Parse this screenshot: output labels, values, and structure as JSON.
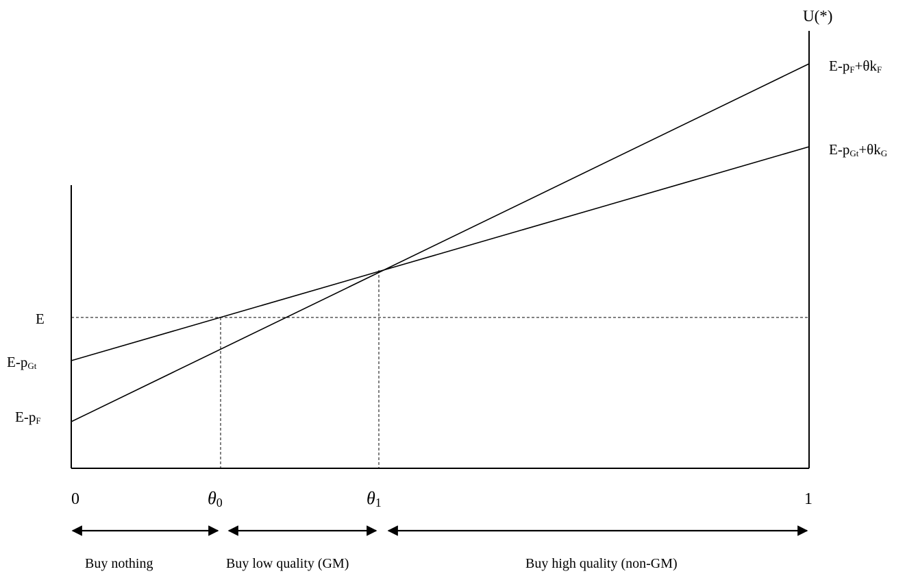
{
  "diagram": {
    "y_axis_label": "U(*)",
    "lines": [
      {
        "label_main": "E-p",
        "label_sub": "F",
        "label_mid": "+θk",
        "label_sub2": "F"
      },
      {
        "label_main": "E-p",
        "label_sub": "Gt",
        "label_mid": "+θk",
        "label_sub2": "G"
      }
    ],
    "y_labels": {
      "E": "E",
      "E_pGt_main": "E-p",
      "E_pGt_sub": "Gt",
      "E_pF_main": "E-p",
      "E_pF_sub": "F"
    },
    "x_labels": {
      "zero": "0",
      "theta": "θ",
      "theta0_sub": "0",
      "theta1_sub": "1",
      "one": "1"
    },
    "regions": {
      "none": "Buy nothing",
      "low": "Buy low quality (GM)",
      "high": "Buy high quality (non-GM)"
    }
  }
}
